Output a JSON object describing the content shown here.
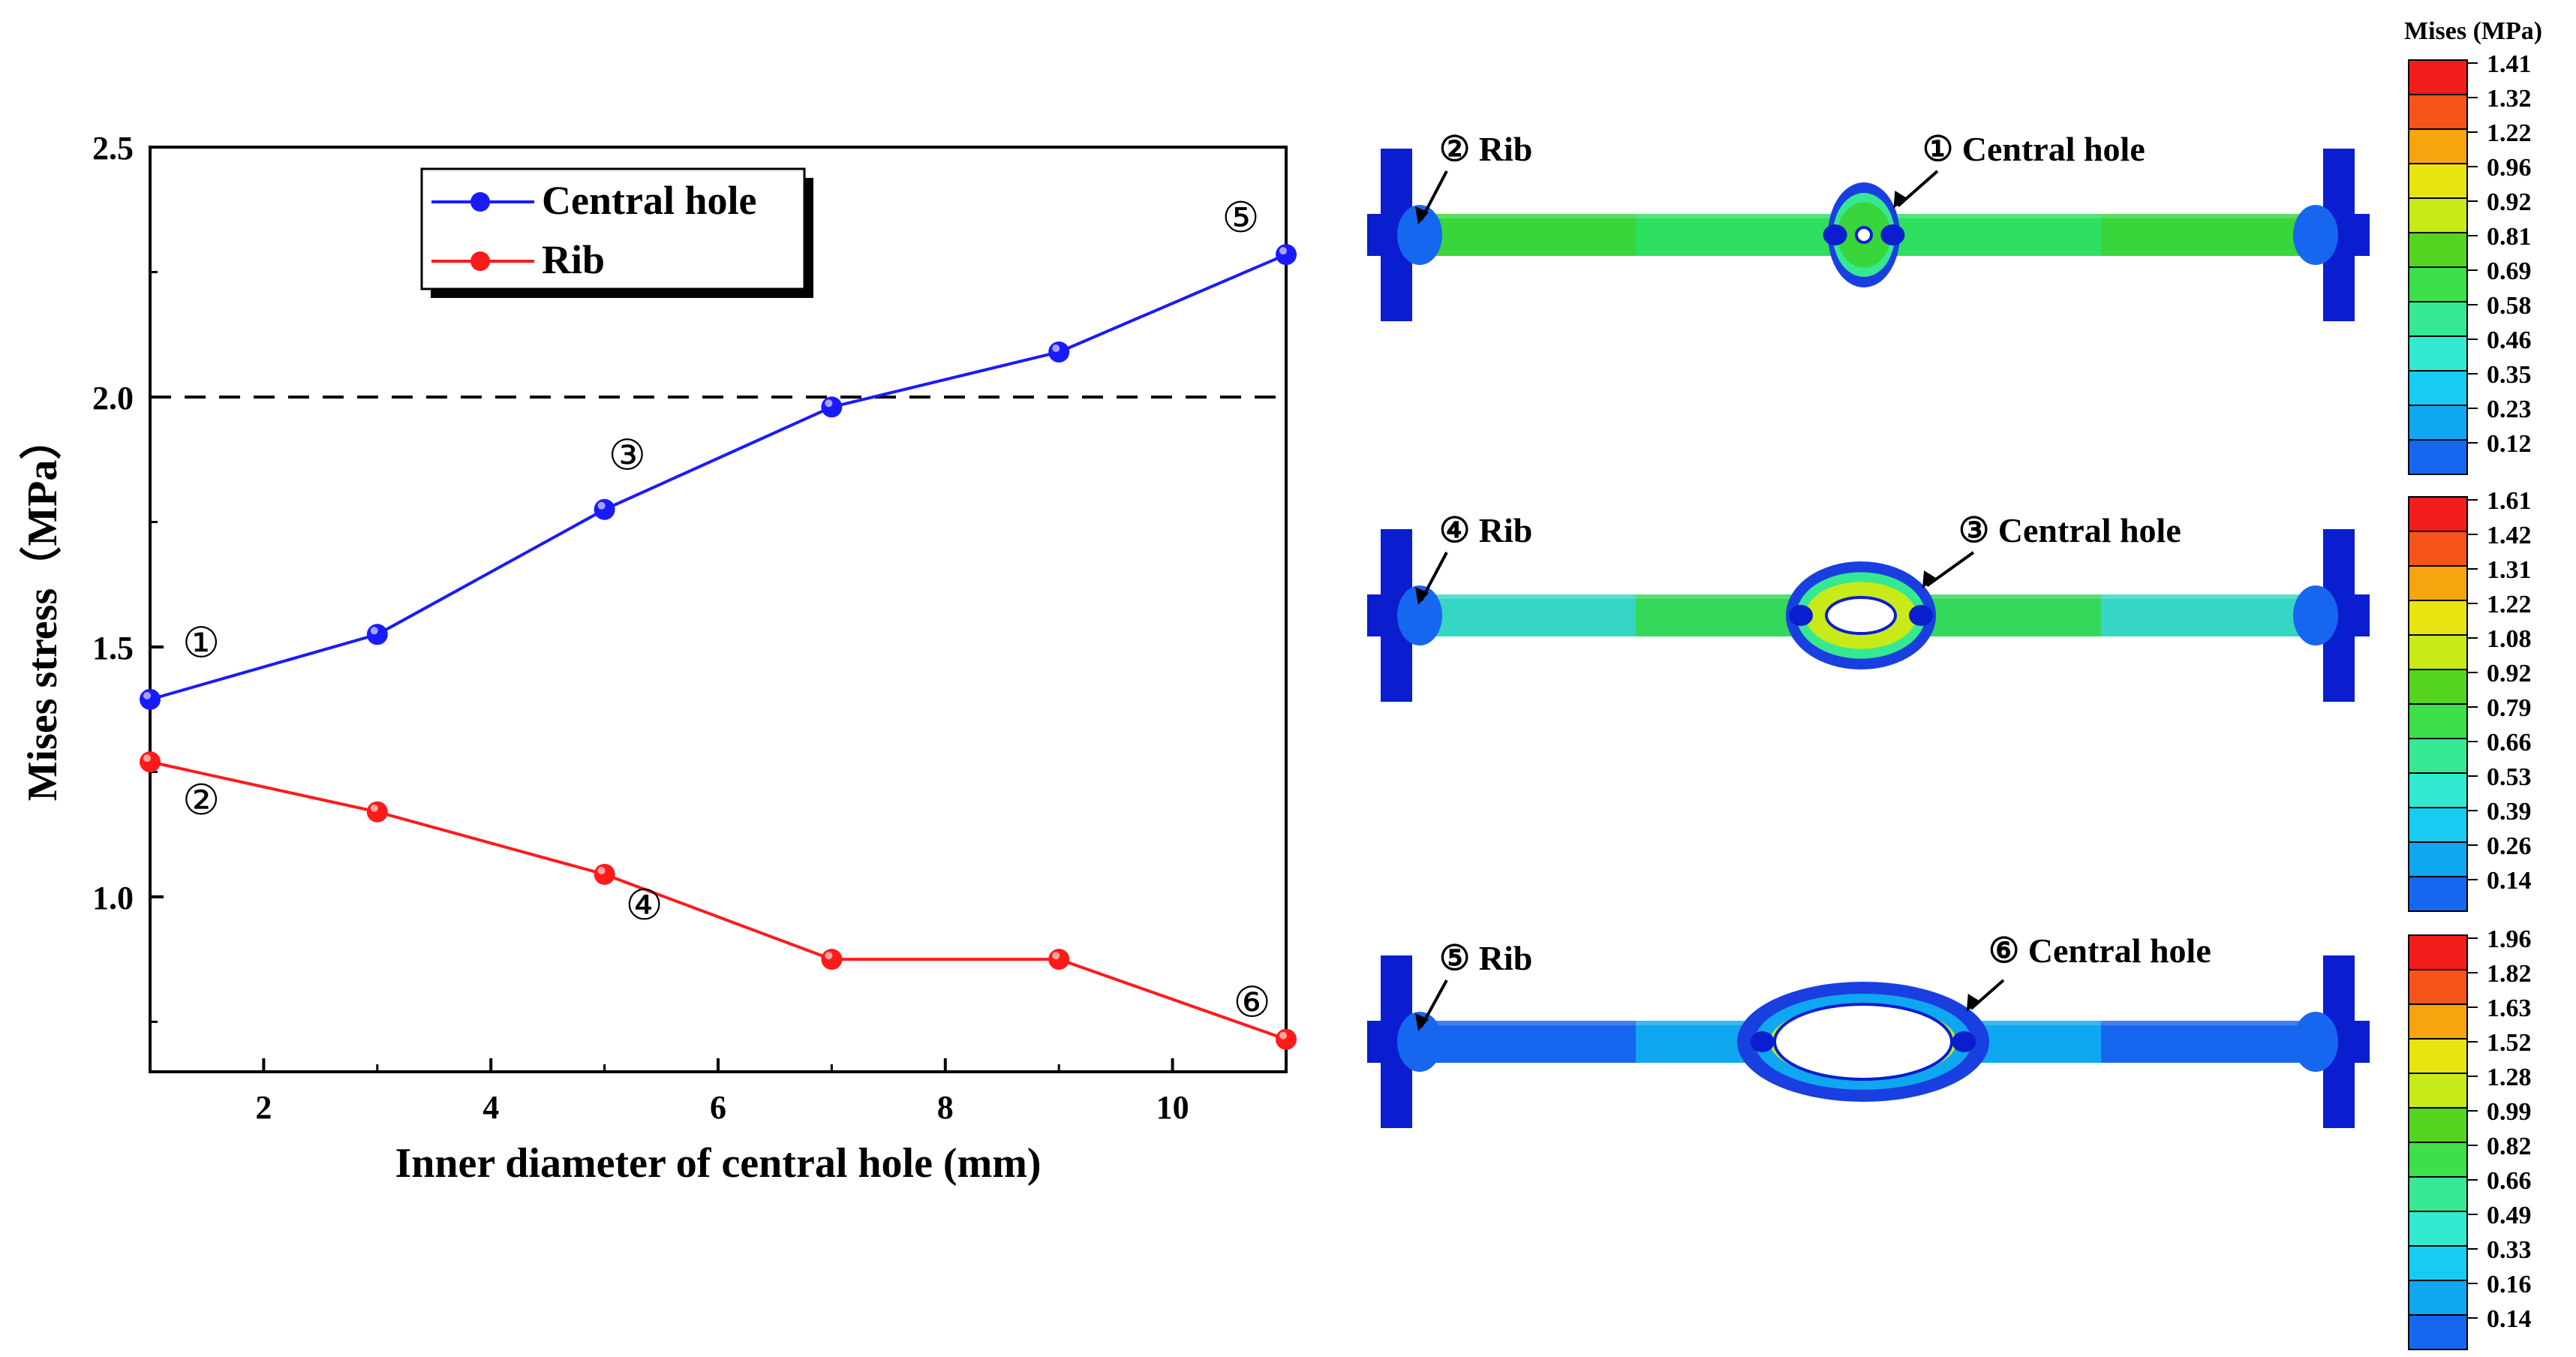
{
  "chart_data": {
    "type": "line",
    "xlabel": "Inner diameter of central hole (mm)",
    "ylabel": "Mises stress（MPa）",
    "x": [
      1,
      3,
      5,
      7,
      9,
      11
    ],
    "xlim": [
      1,
      11
    ],
    "ylim": [
      0.65,
      2.5
    ],
    "xticks": [
      "2",
      "4",
      "6",
      "8",
      "10"
    ],
    "yticks": [
      "1.0",
      "1.5",
      "2.0",
      "2.5"
    ],
    "reference_line": 2.0,
    "legend_position": "top-left",
    "series": [
      {
        "name": "Central hole",
        "color": "#1a1aff",
        "values": [
          1.395,
          1.525,
          1.775,
          1.98,
          2.09,
          2.285
        ]
      },
      {
        "name": "Rib",
        "color": "#ff1a1a",
        "values": [
          1.27,
          1.17,
          1.045,
          0.875,
          0.875,
          0.715
        ]
      }
    ],
    "annotations": [
      {
        "text": "①",
        "x": 1.45,
        "y": 1.48
      },
      {
        "text": "②",
        "x": 1.45,
        "y": 1.165
      },
      {
        "text": "③",
        "x": 5.2,
        "y": 1.855
      },
      {
        "text": "④",
        "x": 5.35,
        "y": 0.955
      },
      {
        "text": "⑤",
        "x": 10.6,
        "y": 2.33
      },
      {
        "text": "⑥",
        "x": 10.7,
        "y": 0.76
      }
    ]
  },
  "panels": [
    {
      "left_label": "② Rib",
      "right_label": "① Central hole",
      "legend_title": "Mises (MPa)",
      "scale": [
        "1.41",
        "1.32",
        "1.22",
        "0.96",
        "0.92",
        "0.81",
        "0.69",
        "0.58",
        "0.46",
        "0.35",
        "0.23",
        "0.12"
      ]
    },
    {
      "left_label": "④ Rib",
      "right_label": "③ Central hole",
      "legend_title": "",
      "scale": [
        "1.61",
        "1.42",
        "1.31",
        "1.22",
        "1.08",
        "0.92",
        "0.79",
        "0.66",
        "0.53",
        "0.39",
        "0.26",
        "0.14"
      ]
    },
    {
      "left_label": "⑤ Rib",
      "right_label": "⑥ Central hole",
      "legend_title": "",
      "scale": [
        "1.96",
        "1.82",
        "1.63",
        "1.52",
        "1.28",
        "0.99",
        "0.82",
        "0.66",
        "0.49",
        "0.33",
        "0.16",
        "0.14"
      ]
    }
  ],
  "colormap": [
    "#f21c1c",
    "#f5541a",
    "#f7a50e",
    "#e7e412",
    "#c7ea18",
    "#55d321",
    "#3ee04a",
    "#36e891",
    "#32ead0",
    "#18ccf1",
    "#10a7f1",
    "#1766f0"
  ]
}
